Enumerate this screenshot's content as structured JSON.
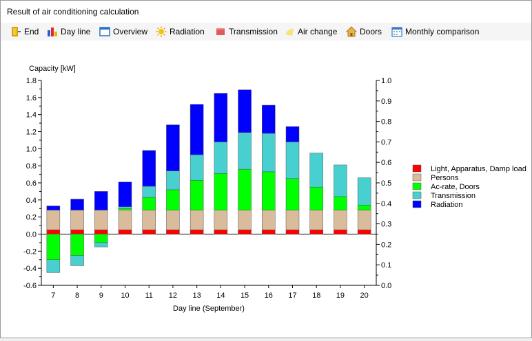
{
  "window": {
    "title": "Result of air conditioning calculation"
  },
  "toolbar": {
    "items": [
      {
        "label": "End",
        "icon": "exit-door-icon"
      },
      {
        "label": "Day line",
        "icon": "bar-chart-icon"
      },
      {
        "label": "Overview",
        "icon": "window-icon"
      },
      {
        "label": "Radiation",
        "icon": "sun-icon"
      },
      {
        "label": "Transmission",
        "icon": "wall-icon"
      },
      {
        "label": "Air change",
        "icon": "air-icon"
      },
      {
        "label": "Doors",
        "icon": "house-icon"
      },
      {
        "label": "Monthly comparison",
        "icon": "calendar-icon"
      }
    ]
  },
  "chart_data": {
    "type": "bar",
    "stacked": true,
    "ylabel": "Capacity [kW]",
    "xlabel": "Day line (September)",
    "categories": [
      "7",
      "8",
      "9",
      "10",
      "11",
      "12",
      "13",
      "14",
      "15",
      "16",
      "17",
      "18",
      "19",
      "20"
    ],
    "ylim": [
      -0.6,
      1.8
    ],
    "y_ticks": [
      "-0.6",
      "-0.4",
      "-0.2",
      "0.0",
      "0.2",
      "0.4",
      "0.6",
      "0.8",
      "1.0",
      "1.2",
      "1.4",
      "1.6",
      "1.8"
    ],
    "y2lim": [
      0.0,
      1.0
    ],
    "y2_ticks": [
      "0.0",
      "0.1",
      "0.2",
      "0.3",
      "0.4",
      "0.5",
      "0.6",
      "0.7",
      "0.8",
      "0.9",
      "1.0"
    ],
    "legend_position": "right",
    "series": [
      {
        "name": "Light, Apparatus, Damp load",
        "color": "#ff0000",
        "values": [
          0.05,
          0.05,
          0.05,
          0.05,
          0.05,
          0.05,
          0.05,
          0.05,
          0.05,
          0.05,
          0.05,
          0.05,
          0.05,
          0.05
        ]
      },
      {
        "name": "Persons",
        "color": "#d8bc9c",
        "values": [
          0.23,
          0.23,
          0.23,
          0.23,
          0.23,
          0.23,
          0.23,
          0.23,
          0.23,
          0.23,
          0.23,
          0.23,
          0.23,
          0.23
        ]
      },
      {
        "name": "Ac-rate, Doors",
        "color": "#00ff00",
        "values": [
          -0.3,
          -0.25,
          -0.1,
          0.02,
          0.15,
          0.24,
          0.35,
          0.43,
          0.48,
          0.45,
          0.37,
          0.27,
          0.16,
          0.06
        ]
      },
      {
        "name": "Transmission",
        "color": "#48cfcf",
        "values": [
          -0.15,
          -0.12,
          -0.05,
          0.02,
          0.13,
          0.22,
          0.3,
          0.37,
          0.43,
          0.45,
          0.43,
          0.4,
          0.37,
          0.32
        ]
      },
      {
        "name": "Radiation",
        "color": "#0000ff",
        "values": [
          0.05,
          0.13,
          0.22,
          0.29,
          0.42,
          0.54,
          0.59,
          0.57,
          0.5,
          0.33,
          0.18,
          0.0,
          0.0,
          0.0
        ]
      }
    ]
  }
}
